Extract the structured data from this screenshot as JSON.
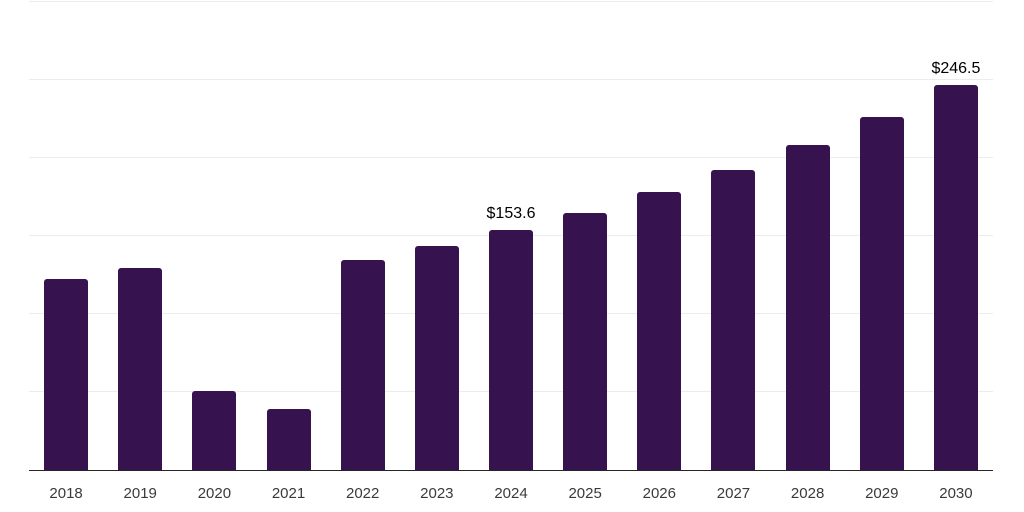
{
  "chart_data": {
    "type": "bar",
    "categories": [
      "2018",
      "2019",
      "2020",
      "2021",
      "2022",
      "2023",
      "2024",
      "2025",
      "2026",
      "2027",
      "2028",
      "2029",
      "2030"
    ],
    "values": [
      122.2,
      129.3,
      50.6,
      38.9,
      134.6,
      143.6,
      153.6,
      165.0,
      178.0,
      192.3,
      208.3,
      226.2,
      246.5
    ],
    "series_name": "value",
    "data_labels": {
      "2024": "$153.6",
      "2030": "$246.5"
    },
    "xlabel": "",
    "ylabel": "",
    "ylim": [
      0,
      300
    ],
    "grid": true,
    "grid_interval": 50,
    "y_axis_labels_visible": false,
    "legend": false,
    "colors": {
      "bar": "#36124E",
      "gridline": "#ececec",
      "axis_line": "#262626",
      "tick_label": "#3a3a3a",
      "value_label": "#000000",
      "background": "#ffffff"
    }
  }
}
